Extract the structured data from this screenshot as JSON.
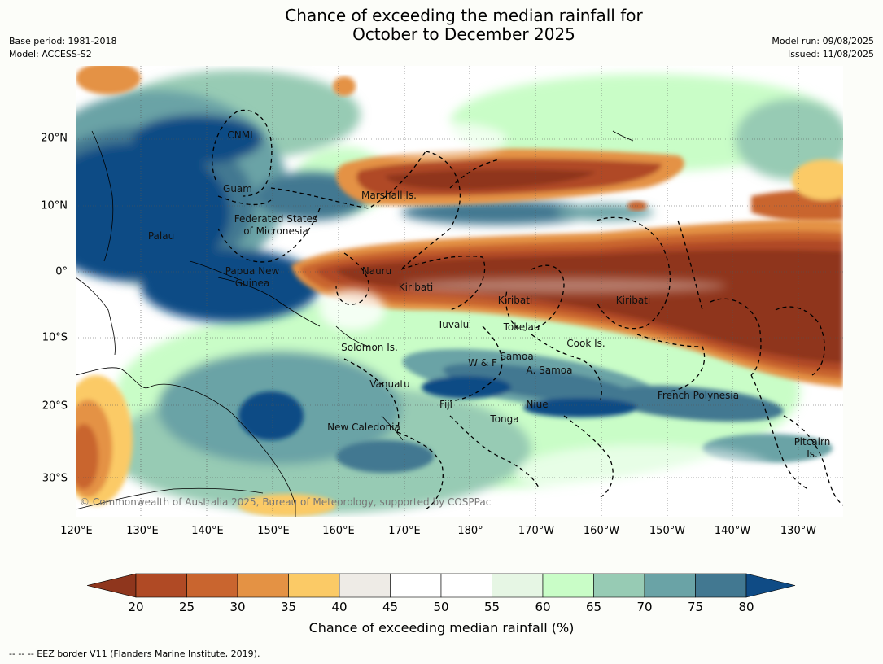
{
  "header": {
    "title_line1": "Chance of exceeding the median rainfall for",
    "title_line2": "October to December 2025",
    "base_period": "Base period: 1981-2018",
    "model": "Model: ACCESS-S2",
    "model_run": "Model run: 09/08/2025",
    "issued": "Issued: 11/08/2025"
  },
  "map": {
    "lon_ticks": [
      "120°E",
      "130°E",
      "140°E",
      "150°E",
      "160°E",
      "170°E",
      "180°",
      "170°W",
      "160°W",
      "150°W",
      "140°W",
      "130°W"
    ],
    "lat_ticks": [
      "20°N",
      "10°N",
      "0°",
      "10°S",
      "20°S",
      "30°S"
    ],
    "region_labels": [
      "CNMI",
      "Guam",
      "Marshall Is.",
      "Federated States",
      "of Micronesia",
      "Palau",
      "Papua New",
      "Guinea",
      "Nauru",
      "Kiribati",
      "Kiribati",
      "Kiribati",
      "Tuvalu",
      "Tokelau",
      "Solomon Is.",
      "Cook Is.",
      "W & F",
      "Samoa",
      "A. Samoa",
      "Vanuatu",
      "Fiji",
      "Niue",
      "French Polynesia",
      "Tonga",
      "New Caledonia",
      "Pitcairn",
      "Is."
    ],
    "copyright": "© Commonwealth of Australia 2025, Bureau of Meteorology, supported by COSPPac"
  },
  "colorbar": {
    "label": "Chance of exceeding median rainfall (%)",
    "ticks": [
      "20",
      "25",
      "30",
      "35",
      "40",
      "45",
      "50",
      "55",
      "60",
      "65",
      "70",
      "75",
      "80"
    ],
    "colors": [
      "#8f361d",
      "#b04a25",
      "#c9652f",
      "#e49244",
      "#fbca66",
      "#eeebe6",
      "#ffffff",
      "#ffffff",
      "#e6f6e4",
      "#c9fdc7",
      "#97cbb4",
      "#6aa3a6",
      "#427891",
      "#0f4b85"
    ]
  },
  "footer": "--  --  -- EEZ border V11 (Flanders Marine Institute, 2019)."
}
